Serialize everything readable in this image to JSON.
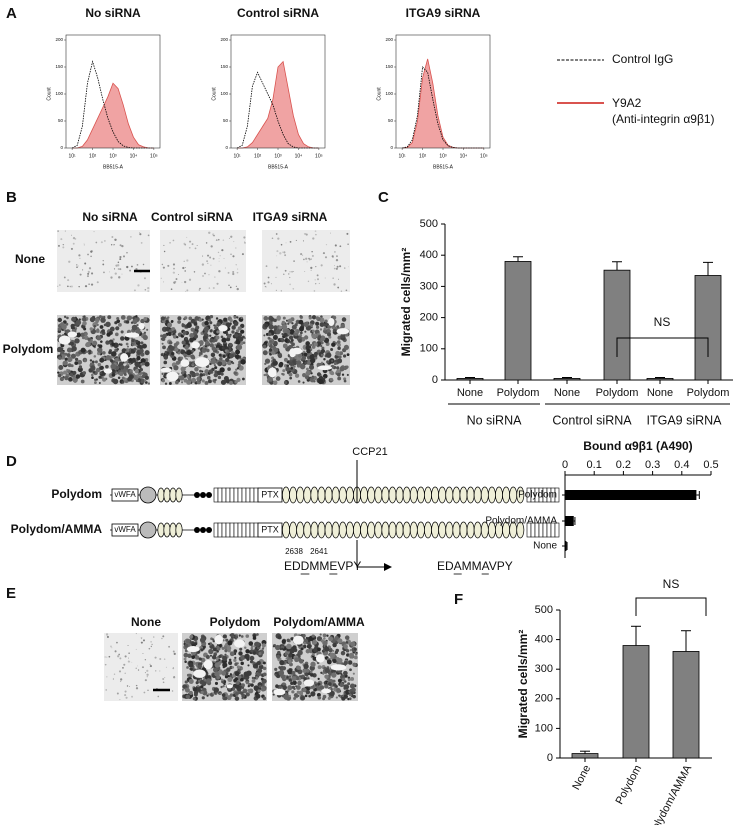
{
  "panel_labels": [
    "A",
    "B",
    "C",
    "D",
    "E",
    "F"
  ],
  "flow": {
    "y_label": "Count",
    "x_label": "BB515-A",
    "x": [
      1,
      1.25,
      1.5,
      1.75,
      2,
      2.25,
      2.5,
      2.75,
      3,
      3.25,
      3.5,
      3.75,
      4,
      4.25,
      4.5,
      4.75,
      5
    ],
    "xlim": [
      0.7,
      5.3
    ],
    "xticks": [
      {
        "value": 1,
        "label": "10¹"
      },
      {
        "value": 2,
        "label": "10²"
      },
      {
        "value": 3,
        "label": "10³"
      },
      {
        "value": 4,
        "label": "10⁴"
      },
      {
        "value": 5,
        "label": "10⁵"
      }
    ],
    "ylim": [
      0,
      200
    ],
    "yticks": [
      0,
      50,
      100,
      150,
      200
    ],
    "legend": [
      {
        "name": "Control IgG",
        "color": "#000000"
      },
      {
        "name": "Y9A2",
        "note": "(Anti-integrin α9β1)",
        "color": "#d9534f",
        "fill": "#f0a3a3"
      }
    ],
    "charts": [
      {
        "title": "No siRNA",
        "series_values": [
          [
            0,
            5,
            40,
            120,
            160,
            130,
            90,
            55,
            30,
            12,
            4,
            1,
            0,
            0,
            0,
            0,
            0
          ],
          [
            0,
            0,
            3,
            15,
            35,
            55,
            75,
            95,
            120,
            110,
            80,
            45,
            20,
            6,
            2,
            0,
            0
          ]
        ]
      },
      {
        "title": "Control siRNA",
        "series_values": [
          [
            0,
            5,
            40,
            115,
            140,
            120,
            100,
            80,
            50,
            25,
            8,
            2,
            0,
            0,
            0,
            0,
            0
          ],
          [
            0,
            0,
            2,
            10,
            25,
            40,
            55,
            90,
            150,
            160,
            110,
            60,
            25,
            8,
            2,
            0,
            0
          ]
        ]
      },
      {
        "title": "ITGA9 siRNA",
        "series_values": [
          [
            0,
            2,
            15,
            60,
            150,
            140,
            90,
            45,
            15,
            4,
            1,
            0,
            0,
            0,
            0,
            0,
            0
          ],
          [
            0,
            1,
            10,
            50,
            130,
            165,
            120,
            60,
            20,
            5,
            1,
            0,
            0,
            0,
            0,
            0,
            0
          ]
        ]
      }
    ]
  },
  "images_b": {
    "columns": [
      "No siRNA",
      "Control siRNA",
      "ITGA9 siRNA"
    ],
    "rows": [
      "None",
      "Polydom"
    ]
  },
  "chart_c": {
    "type": "bar",
    "y_label": "Migrated cells/mm²",
    "color": "#808080",
    "ylim": [
      0,
      500
    ],
    "yticks": [
      0,
      100,
      200,
      300,
      400,
      500
    ],
    "groups": [
      {
        "name": "No siRNA",
        "categories": [
          "None",
          "Polydom"
        ],
        "values": [
          5,
          380
        ],
        "errors": [
          3,
          15
        ]
      },
      {
        "name": "Control siRNA",
        "categories": [
          "None",
          "Polydom"
        ],
        "values": [
          5,
          352
        ],
        "errors": [
          3,
          27
        ]
      },
      {
        "name": "ITGA9 siRNA",
        "categories": [
          "None",
          "Polydom"
        ],
        "values": [
          5,
          335
        ],
        "errors": [
          3,
          42
        ]
      }
    ],
    "annotation": "NS"
  },
  "diagram": {
    "constructs": [
      "Polydom",
      "Polydom/AMMA"
    ],
    "vwfa": "vWFA",
    "ptx": "PTX",
    "ccp_label": "CCP21",
    "residues": [
      "2638",
      "2641"
    ],
    "wild_sequence": "EDDMMEVPY",
    "mutant_sequence": "EDAMMAVPY"
  },
  "chart_d": {
    "type": "hbar",
    "title": "Bound α9β1 (A490)",
    "color": "#000000",
    "categories": [
      "Polydom",
      "Polydom/AMMA",
      "None"
    ],
    "values": [
      0.45,
      0.03,
      0.005
    ],
    "errors": [
      0.01,
      0.004,
      0.002
    ],
    "xlim": [
      0,
      0.5
    ],
    "xticks": [
      0,
      0.1,
      0.2,
      0.3,
      0.4,
      0.5
    ]
  },
  "images_e": {
    "columns": [
      "None",
      "Polydom",
      "Polydom/AMMA"
    ]
  },
  "chart_f": {
    "type": "bar",
    "y_label": "Migrated cells/mm²",
    "color": "#808080",
    "ylim": [
      0,
      500
    ],
    "yticks": [
      0,
      100,
      200,
      300,
      400,
      500
    ],
    "categories": [
      "None",
      "Polydom",
      "Polydom/AMMA"
    ],
    "values": [
      15,
      380,
      360
    ],
    "errors": [
      8,
      65,
      70
    ],
    "annotation": "NS"
  }
}
